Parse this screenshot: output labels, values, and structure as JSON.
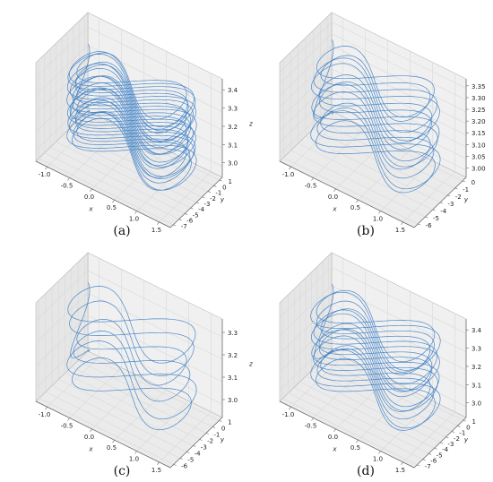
{
  "figure": {
    "line_color": "#3b7dc4",
    "pane_color": "#f0f0f0",
    "grid_color": "#d9d9d9",
    "edge_color": "#b8b8b8"
  },
  "chart_data": [
    {
      "type": "line3d",
      "caption": "(a)",
      "xlabel": "x",
      "ylabel": "y",
      "zlabel": "z",
      "xlim": [
        -1.3,
        1.8
      ],
      "ylim": [
        -7,
        1
      ],
      "zlim": [
        2.93,
        3.42
      ],
      "x_ticks": [
        "-1.0",
        "-0.5",
        "0.0",
        "0.5",
        "1.0",
        "1.5"
      ],
      "y_ticks": [
        "1",
        "0",
        "-1",
        "-2",
        "-3",
        "-4",
        "-5",
        "-6",
        "-7"
      ],
      "z_ticks": [
        "3.4",
        "3.3",
        "3.2",
        "3.1",
        "3.0"
      ],
      "loops": 22,
      "z_levels": [
        3.0,
        3.34
      ]
    },
    {
      "type": "line3d",
      "caption": "(b)",
      "xlabel": "x",
      "ylabel": "y",
      "zlabel": "z",
      "xlim": [
        -1.3,
        1.8
      ],
      "ylim": [
        -6.5,
        1
      ],
      "zlim": [
        2.95,
        3.37
      ],
      "x_ticks": [
        "-1.0",
        "-0.5",
        "0.0",
        "0.5",
        "1.0",
        "1.5"
      ],
      "y_ticks": [
        "0",
        "-1",
        "-2",
        "-3",
        "-4",
        "-5",
        "-6"
      ],
      "z_ticks": [
        "3.35",
        "3.30",
        "3.25",
        "3.20",
        "3.15",
        "3.10",
        "3.05",
        "3.00"
      ],
      "loops": 12,
      "z_levels": [
        3.0,
        3.32
      ]
    },
    {
      "type": "line3d",
      "caption": "(c)",
      "xlabel": "x",
      "ylabel": "y",
      "zlabel": "z",
      "xlim": [
        -1.3,
        1.8
      ],
      "ylim": [
        -6.5,
        1
      ],
      "zlim": [
        2.93,
        3.4
      ],
      "x_ticks": [
        "-1.0",
        "-0.5",
        "0.0",
        "0.5",
        "1.0",
        "1.5"
      ],
      "y_ticks": [
        "1",
        "0",
        "-1",
        "-2",
        "-3",
        "-4",
        "-5",
        "-6"
      ],
      "z_ticks": [
        "3.3",
        "3.2",
        "3.1",
        "3.0"
      ],
      "loops": 6,
      "z_levels": [
        3.0,
        3.33
      ]
    },
    {
      "type": "line3d",
      "caption": "(d)",
      "xlabel": "x",
      "ylabel": "y",
      "zlabel": "z",
      "xlim": [
        -1.3,
        1.8
      ],
      "ylim": [
        -7,
        1
      ],
      "zlim": [
        2.93,
        3.42
      ],
      "x_ticks": [
        "-1.0",
        "-0.5",
        "0.0",
        "0.5",
        "1.0",
        "1.5"
      ],
      "y_ticks": [
        "1",
        "0",
        "-1",
        "-2",
        "-3",
        "-4",
        "-5",
        "-6",
        "-7"
      ],
      "z_ticks": [
        "3.4",
        "3.3",
        "3.2",
        "3.1",
        "3.0"
      ],
      "loops": 14,
      "z_levels": [
        3.0,
        3.34
      ]
    }
  ]
}
